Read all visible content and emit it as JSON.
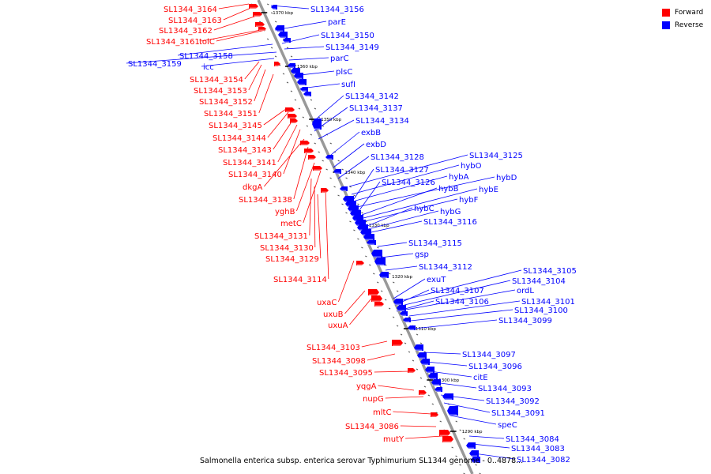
{
  "legend": {
    "forward_label": "Forward",
    "reverse_label": "Reverse",
    "forward_color": "#ff0000",
    "reverse_color": "#0000ff"
  },
  "caption": "Salmonella enterica subsp. enterica serovar Typhimurium SL1344 genome - 0..4878...",
  "scale_labels": [
    "1370 kbp",
    "1360 kbp",
    "1350 kbp",
    "1340 kbp",
    "1330 kbp",
    "1320 kbp",
    "1310 kbp",
    "1300 kbp",
    "1290 kbp"
  ],
  "forward_genes": [
    "SL1344_3164",
    "SL1344_3163",
    "SL1344_3162",
    "SL1344_3161",
    "tolC",
    "SL1344_3154",
    "SL1344_3153",
    "SL1344_3152",
    "SL1344_3151",
    "SL1344_3145",
    "SL1344_3144",
    "SL1344_3143",
    "SL1344_3141",
    "SL1344_3140",
    "dkgA",
    "SL1344_3138",
    "yghB",
    "metC",
    "SL1344_3131",
    "SL1344_3130",
    "SL1344_3129",
    "SL1344_3114",
    "uxaC",
    "uxuB",
    "uxuA",
    "SL1344_3103",
    "SL1344_3098",
    "SL1344_3095",
    "yqgA",
    "nupG",
    "mltC",
    "SL1344_3086",
    "mutY"
  ],
  "reverse_genes": [
    "SL1344_3156",
    "parE",
    "SL1344_3150",
    "SL1344_3149",
    "SL1344_3158",
    "parC",
    "icc",
    "SL1344_3159",
    "plsC",
    "sufI",
    "SL1344_3142",
    "SL1344_3137",
    "SL1344_3134",
    "exbB",
    "exbD",
    "SL1344_3128",
    "SL1344_3125",
    "hybO",
    "SL1344_3127",
    "hybA",
    "hybD",
    "SL1344_3126",
    "hybB",
    "hybE",
    "hybF",
    "hybC",
    "hybG",
    "SL1344_3116",
    "SL1344_3115",
    "gsp",
    "SL1344_3112",
    "SL1344_3105",
    "SL1344_3104",
    "exuT",
    "ordL",
    "SL1344_3107",
    "SL1344_3101",
    "SL1344_3106",
    "SL1344_3100",
    "SL1344_3099",
    "SL1344_3097",
    "SL1344_3096",
    "citE",
    "SL1344_3093",
    "SL1344_3092",
    "SL1344_3091",
    "speC",
    "SL1344_3084",
    "SL1344_3083",
    "SL1344_3082"
  ]
}
